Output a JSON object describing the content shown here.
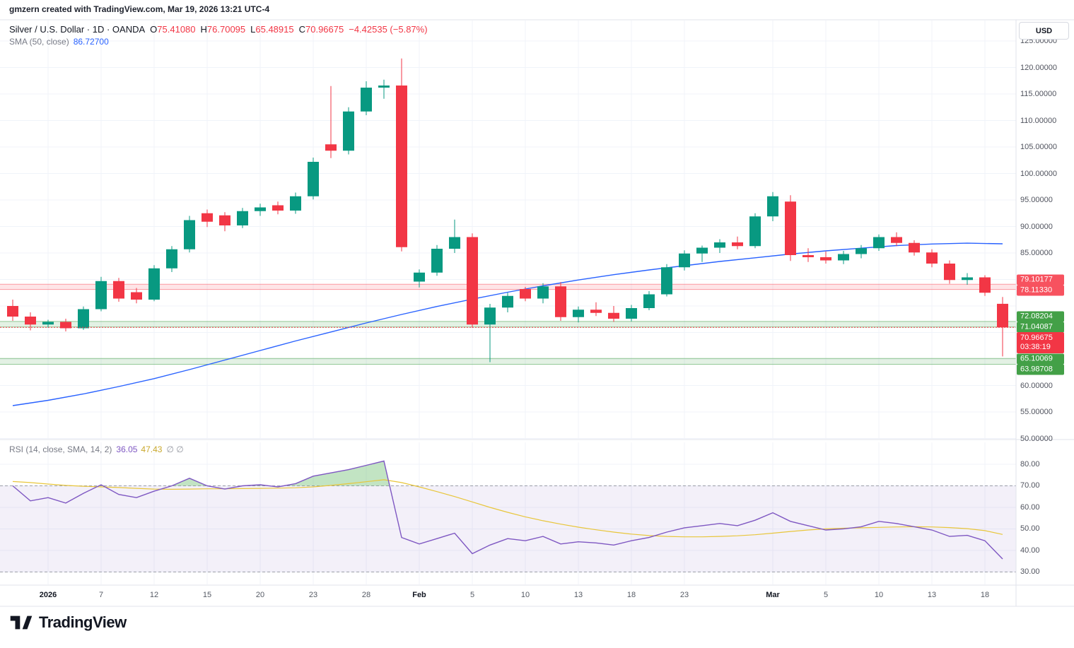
{
  "attribution": "gmzern created with TradingView.com, Mar 19, 2026 13:21 UTC-4",
  "legend": {
    "title": "Silver / U.S. Dollar · 1D · OANDA",
    "ohlc": [
      {
        "k": "O",
        "v": "75.41080"
      },
      {
        "k": "H",
        "v": "76.70095"
      },
      {
        "k": "L",
        "v": "65.48915"
      },
      {
        "k": "C",
        "v": "70.96675"
      }
    ],
    "change": "−4.42535 (−5.87%)",
    "sma_label": "SMA (50, close)",
    "sma_value": "86.72700",
    "rsi_label": "RSI (14, close, SMA, 14, 2)",
    "rsi_value": "36.05",
    "rsi_ma_value": "47.43",
    "rsi_extra": "∅ ∅"
  },
  "price_axis": {
    "currency": "USD",
    "ticks": [
      {
        "p": 125,
        "t": "125.00000"
      },
      {
        "p": 120,
        "t": "120.00000"
      },
      {
        "p": 115,
        "t": "115.00000"
      },
      {
        "p": 110,
        "t": "110.00000"
      },
      {
        "p": 105,
        "t": "105.00000"
      },
      {
        "p": 100,
        "t": "100.00000"
      },
      {
        "p": 95,
        "t": "95.00000"
      },
      {
        "p": 90,
        "t": "90.00000"
      },
      {
        "p": 85,
        "t": "85.00000"
      },
      {
        "p": 60,
        "t": "60.00000"
      },
      {
        "p": 55,
        "t": "55.00000"
      },
      {
        "p": 50,
        "t": "50.00000"
      }
    ],
    "levels": [
      {
        "text": "79.10177",
        "kind": "resistance",
        "color": "#f7525f"
      },
      {
        "text": "78.11330",
        "kind": "resistance",
        "color": "#f7525f"
      },
      {
        "text": "72.08204",
        "kind": "support",
        "color": "#43a047"
      },
      {
        "text": "71.04087",
        "kind": "support",
        "color": "#43a047"
      },
      {
        "text": "65.10069",
        "kind": "support",
        "color": "#43a047"
      },
      {
        "text": "63.98708",
        "kind": "support",
        "color": "#43a047"
      }
    ],
    "last": {
      "price": "70.96675",
      "countdown": "03:38:19",
      "color": "#f23645"
    }
  },
  "rsi_axis": {
    "ticks": [
      {
        "v": 80,
        "t": "80.00"
      },
      {
        "v": 70,
        "t": "70.00"
      },
      {
        "v": 60,
        "t": "60.00"
      },
      {
        "v": 50,
        "t": "50.00"
      },
      {
        "v": 40,
        "t": "40.00"
      },
      {
        "v": 30,
        "t": "30.00"
      }
    ]
  },
  "time_axis": [
    {
      "label": "2026",
      "i": 2,
      "major": true
    },
    {
      "label": "7",
      "i": 5,
      "major": false
    },
    {
      "label": "12",
      "i": 8,
      "major": false
    },
    {
      "label": "15",
      "i": 11,
      "major": false
    },
    {
      "label": "20",
      "i": 14,
      "major": false
    },
    {
      "label": "23",
      "i": 17,
      "major": false
    },
    {
      "label": "28",
      "i": 20,
      "major": false
    },
    {
      "label": "Feb",
      "i": 23,
      "major": true
    },
    {
      "label": "5",
      "i": 26,
      "major": false
    },
    {
      "label": "10",
      "i": 29,
      "major": false
    },
    {
      "label": "13",
      "i": 32,
      "major": false
    },
    {
      "label": "18",
      "i": 35,
      "major": false
    },
    {
      "label": "23",
      "i": 38,
      "major": false
    },
    {
      "label": "Mar",
      "i": 43,
      "major": true
    },
    {
      "label": "5",
      "i": 46,
      "major": false
    },
    {
      "label": "10",
      "i": 49,
      "major": false
    },
    {
      "label": "13",
      "i": 52,
      "major": false
    },
    {
      "label": "18",
      "i": 55,
      "major": false
    }
  ],
  "colors": {
    "up": "#089981",
    "down": "#f23645",
    "sma": "#2962ff",
    "rsi": "#7e57c2",
    "rsi_ma": "#e8c63b",
    "grid": "#f0f3fa",
    "frame": "#e0e3eb",
    "level_red": "#f7525f",
    "level_green": "#43a047"
  },
  "logo": {
    "text": "TradingView"
  },
  "chart_data": {
    "type": "candlestick",
    "title": "Silver / U.S. Dollar, 1D, OANDA",
    "ylabel": "USD",
    "ylim": [
      50,
      129
    ],
    "price_grid": [
      50,
      55,
      60,
      65,
      70,
      75,
      80,
      85,
      90,
      95,
      100,
      105,
      110,
      115,
      120,
      125
    ],
    "last_price": 70.96675,
    "candles": [
      [
        75.0,
        76.2,
        72.2,
        73.0
      ],
      [
        73.0,
        73.8,
        70.4,
        71.5
      ],
      [
        71.5,
        72.4,
        70.9,
        72.0
      ],
      [
        72.0,
        72.6,
        70.2,
        70.8
      ],
      [
        70.8,
        74.9,
        70.5,
        74.4
      ],
      [
        74.4,
        80.5,
        74.0,
        79.7
      ],
      [
        79.7,
        80.3,
        75.8,
        76.4
      ],
      [
        77.6,
        78.4,
        75.5,
        76.2
      ],
      [
        76.2,
        82.7,
        75.9,
        82.1
      ],
      [
        82.1,
        86.3,
        81.4,
        85.7
      ],
      [
        85.7,
        92.0,
        85.1,
        91.2
      ],
      [
        92.5,
        93.2,
        89.9,
        90.9
      ],
      [
        92.1,
        92.7,
        89.1,
        90.2
      ],
      [
        90.2,
        93.5,
        89.7,
        92.9
      ],
      [
        92.9,
        94.3,
        92.0,
        93.6
      ],
      [
        94.0,
        94.7,
        92.3,
        93.0
      ],
      [
        93.0,
        96.4,
        92.4,
        95.7
      ],
      [
        95.7,
        103.0,
        95.1,
        102.2
      ],
      [
        105.5,
        116.5,
        102.9,
        104.3
      ],
      [
        104.3,
        112.5,
        103.6,
        111.7
      ],
      [
        111.7,
        117.4,
        111.0,
        116.2
      ],
      [
        116.2,
        117.7,
        114.1,
        116.6
      ],
      [
        116.6,
        121.7,
        85.3,
        86.1
      ],
      [
        79.6,
        81.9,
        78.5,
        81.3
      ],
      [
        81.3,
        86.5,
        80.7,
        85.8
      ],
      [
        85.8,
        91.3,
        85.0,
        88.0
      ],
      [
        88.0,
        88.7,
        70.9,
        71.5
      ],
      [
        71.5,
        75.4,
        64.4,
        74.7
      ],
      [
        74.7,
        77.5,
        73.8,
        76.9
      ],
      [
        78.2,
        78.6,
        75.9,
        76.4
      ],
      [
        76.4,
        79.3,
        75.5,
        78.7
      ],
      [
        78.7,
        79.5,
        72.2,
        72.9
      ],
      [
        72.9,
        74.9,
        71.9,
        74.3
      ],
      [
        74.3,
        75.7,
        73.1,
        73.7
      ],
      [
        73.7,
        75.0,
        72.0,
        72.6
      ],
      [
        72.6,
        75.2,
        72.1,
        74.6
      ],
      [
        74.6,
        77.8,
        74.2,
        77.2
      ],
      [
        77.2,
        82.9,
        76.8,
        82.3
      ],
      [
        82.3,
        85.5,
        81.7,
        84.9
      ],
      [
        84.9,
        86.4,
        83.3,
        86.0
      ],
      [
        86.0,
        87.6,
        85.0,
        87.0
      ],
      [
        87.0,
        88.1,
        85.7,
        86.3
      ],
      [
        86.3,
        92.5,
        85.9,
        91.9
      ],
      [
        91.9,
        96.5,
        91.0,
        95.7
      ],
      [
        94.7,
        95.9,
        83.5,
        84.6
      ],
      [
        84.6,
        85.9,
        83.3,
        84.2
      ],
      [
        84.2,
        85.3,
        83.0,
        83.6
      ],
      [
        83.6,
        85.4,
        82.9,
        84.8
      ],
      [
        84.8,
        86.5,
        84.0,
        85.9
      ],
      [
        85.9,
        88.5,
        85.4,
        88.0
      ],
      [
        88.0,
        88.9,
        86.3,
        86.9
      ],
      [
        86.9,
        87.4,
        84.5,
        85.1
      ],
      [
        85.1,
        85.7,
        82.3,
        83.0
      ],
      [
        83.0,
        83.6,
        79.2,
        79.9
      ],
      [
        79.9,
        81.2,
        79.0,
        80.4
      ],
      [
        80.4,
        80.8,
        76.9,
        77.5
      ],
      [
        75.41,
        76.7,
        65.49,
        70.97
      ]
    ],
    "sma50": [
      [
        0,
        56.2
      ],
      [
        2,
        57.2
      ],
      [
        4,
        58.4
      ],
      [
        6,
        59.8
      ],
      [
        8,
        61.3
      ],
      [
        10,
        63.0
      ],
      [
        12,
        64.8
      ],
      [
        14,
        66.6
      ],
      [
        16,
        68.4
      ],
      [
        18,
        70.1
      ],
      [
        20,
        71.8
      ],
      [
        22,
        73.4
      ],
      [
        24,
        74.9
      ],
      [
        26,
        76.3
      ],
      [
        28,
        77.6
      ],
      [
        30,
        78.8
      ],
      [
        32,
        79.9
      ],
      [
        34,
        80.9
      ],
      [
        36,
        81.8
      ],
      [
        38,
        82.6
      ],
      [
        40,
        83.4
      ],
      [
        42,
        84.1
      ],
      [
        44,
        84.8
      ],
      [
        46,
        85.4
      ],
      [
        48,
        85.9
      ],
      [
        50,
        86.4
      ],
      [
        52,
        86.7
      ],
      [
        54,
        86.85
      ],
      [
        56,
        86.73
      ]
    ],
    "zones": [
      {
        "top": 79.10177,
        "bottom": 78.1133,
        "kind": "resistance"
      },
      {
        "top": 72.08204,
        "bottom": 71.04087,
        "kind": "support"
      },
      {
        "top": 65.10069,
        "bottom": 63.98708,
        "kind": "support"
      }
    ],
    "rsi": {
      "overbought": 70,
      "oversold": 30,
      "ylim": [
        28,
        90
      ],
      "values": [
        70,
        63,
        64.5,
        62,
        66.5,
        70.5,
        66,
        64.5,
        67.5,
        70,
        73.5,
        70,
        68.5,
        70,
        70.5,
        69.5,
        71,
        74.5,
        76,
        77.5,
        79.5,
        81.5,
        46,
        43,
        45.5,
        48,
        38.5,
        42.5,
        45.5,
        44.5,
        46.5,
        43,
        44,
        43.5,
        42.5,
        44.5,
        46,
        48.5,
        50.5,
        51.5,
        52.5,
        51.5,
        54,
        57.5,
        53.5,
        51.5,
        49.5,
        50,
        51,
        53.5,
        52.5,
        51,
        49.5,
        46.5,
        47,
        44.5,
        36.05
      ],
      "ma": [
        72,
        71.5,
        70.8,
        70.2,
        69.8,
        69.5,
        69.2,
        68.8,
        68.5,
        68.4,
        68.5,
        68.6,
        68.6,
        68.7,
        68.8,
        68.9,
        69.1,
        69.5,
        70.2,
        71.0,
        71.9,
        72.8,
        71.5,
        69.5,
        67.3,
        65.0,
        62.5,
        60.0,
        57.7,
        55.6,
        53.8,
        52.2,
        50.8,
        49.6,
        48.5,
        47.6,
        46.9,
        46.5,
        46.3,
        46.3,
        46.5,
        46.8,
        47.3,
        48.0,
        48.8,
        49.5,
        50.0,
        50.3,
        50.5,
        50.7,
        50.9,
        51.0,
        50.9,
        50.6,
        50.1,
        49.2,
        47.43
      ]
    }
  }
}
